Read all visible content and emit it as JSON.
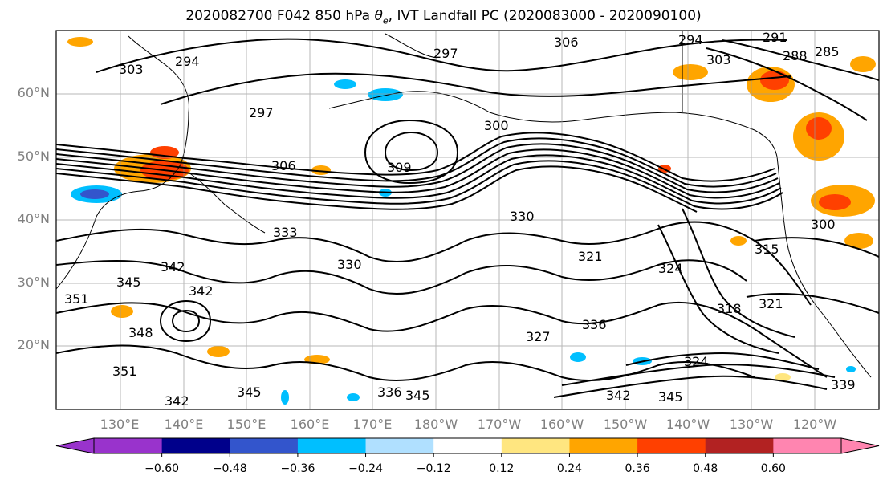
{
  "title_prefix": "2020082700 F042 850 hPa ",
  "title_symbol": "θ",
  "title_sub": "e",
  "title_suffix": ", IVT Landfall PC (2020083000 - 2020090100)",
  "lat_labels": [
    "60°N",
    "50°N",
    "40°N",
    "30°N",
    "20°N"
  ],
  "lon_labels": [
    "130°E",
    "140°E",
    "150°E",
    "160°E",
    "170°E",
    "180°W",
    "170°W",
    "160°W",
    "150°W",
    "140°W",
    "130°W",
    "120°W"
  ],
  "colorbar": {
    "colors": [
      "#9933cc",
      "#00008b",
      "#3355cc",
      "#00bfff",
      "#b0e0ff",
      "#ffffff",
      "#ffe680",
      "#ffa500",
      "#ff4000",
      "#b22222",
      "#ff85b0"
    ],
    "tick_labels": [
      "−0.60",
      "−0.48",
      "−0.36",
      "−0.24",
      "−0.12",
      "0.12",
      "0.24",
      "0.36",
      "0.48",
      "0.60"
    ]
  },
  "contour_labels": [
    "294",
    "297",
    "300",
    "306",
    "309",
    "291",
    "285",
    "288",
    "303",
    "330",
    "333",
    "321",
    "324",
    "318",
    "315",
    "345",
    "342",
    "348",
    "351",
    "336",
    "339",
    "327"
  ]
}
